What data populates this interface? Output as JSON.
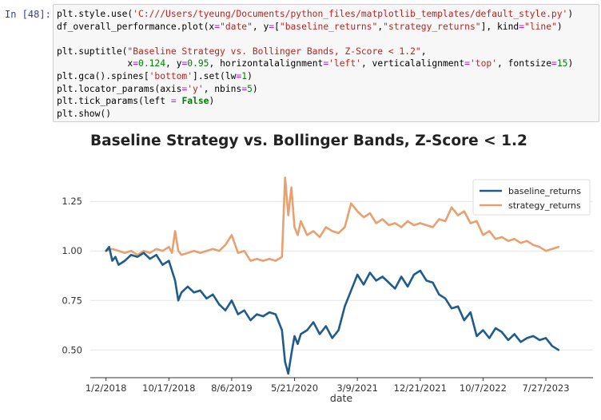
{
  "cell": {
    "prompt": "In [48]:",
    "code_lines": [
      [
        {
          "t": "plt.style.use(",
          "c": "fn"
        },
        {
          "t": "'C:///Users/tyeung/Documents/python_files/matplotlib_templates/default_style.py'",
          "c": "str"
        },
        {
          "t": ")",
          "c": "fn"
        }
      ],
      [
        {
          "t": "df_overall_performance.plot(x",
          "c": "fn"
        },
        {
          "t": "=",
          "c": "op"
        },
        {
          "t": "\"date\"",
          "c": "str"
        },
        {
          "t": ", y",
          "c": "fn"
        },
        {
          "t": "=",
          "c": "op"
        },
        {
          "t": "[",
          "c": "fn"
        },
        {
          "t": "\"baseline_returns\"",
          "c": "str"
        },
        {
          "t": ",",
          "c": "fn"
        },
        {
          "t": "\"strategy_returns\"",
          "c": "str"
        },
        {
          "t": "], kind",
          "c": "fn"
        },
        {
          "t": "=",
          "c": "op"
        },
        {
          "t": "\"line\"",
          "c": "str"
        },
        {
          "t": ")",
          "c": "fn"
        }
      ],
      [],
      [
        {
          "t": "plt.suptitle(",
          "c": "fn"
        },
        {
          "t": "\"Baseline Strategy vs. Bollinger Bands, Z-Score < 1.2\"",
          "c": "str"
        },
        {
          "t": ",",
          "c": "fn"
        }
      ],
      [
        {
          "t": "             x",
          "c": "fn"
        },
        {
          "t": "=",
          "c": "op"
        },
        {
          "t": "0.124",
          "c": "num"
        },
        {
          "t": ", y",
          "c": "fn"
        },
        {
          "t": "=",
          "c": "op"
        },
        {
          "t": "0.95",
          "c": "num"
        },
        {
          "t": ", horizontalalignment",
          "c": "fn"
        },
        {
          "t": "=",
          "c": "op"
        },
        {
          "t": "'left'",
          "c": "str"
        },
        {
          "t": ", verticalalignment",
          "c": "fn"
        },
        {
          "t": "=",
          "c": "op"
        },
        {
          "t": "'top'",
          "c": "str"
        },
        {
          "t": ", fontsize",
          "c": "fn"
        },
        {
          "t": "=",
          "c": "op"
        },
        {
          "t": "15",
          "c": "num"
        },
        {
          "t": ")",
          "c": "fn"
        }
      ],
      [
        {
          "t": "plt.gca().spines[",
          "c": "fn"
        },
        {
          "t": "'bottom'",
          "c": "str"
        },
        {
          "t": "].set(lw",
          "c": "fn"
        },
        {
          "t": "=",
          "c": "op"
        },
        {
          "t": "1",
          "c": "num"
        },
        {
          "t": ")",
          "c": "fn"
        }
      ],
      [
        {
          "t": "plt.locator_params(axis",
          "c": "fn"
        },
        {
          "t": "=",
          "c": "op"
        },
        {
          "t": "'y'",
          "c": "str"
        },
        {
          "t": ", nbins",
          "c": "fn"
        },
        {
          "t": "=",
          "c": "op"
        },
        {
          "t": "5",
          "c": "num"
        },
        {
          "t": ")",
          "c": "fn"
        }
      ],
      [
        {
          "t": "plt.tick_params(left ",
          "c": "fn"
        },
        {
          "t": "=",
          "c": "op"
        },
        {
          "t": " ",
          "c": "fn"
        },
        {
          "t": "False",
          "c": "kw"
        },
        {
          "t": ")",
          "c": "fn"
        }
      ],
      [
        {
          "t": "plt.show()",
          "c": "fn"
        }
      ]
    ]
  },
  "chart_data": {
    "type": "line",
    "title": "Baseline Strategy vs. Bollinger Bands, Z-Score < 1.2",
    "xlabel": "date",
    "ylabel": "",
    "x_tick_labels": [
      "1/2/2018",
      "10/17/2018",
      "8/6/2019",
      "5/21/2020",
      "3/9/2021",
      "12/21/2021",
      "10/7/2022",
      "7/27/2023"
    ],
    "y_ticks": [
      0.5,
      0.75,
      1.0,
      1.25
    ],
    "y_tick_labels": [
      "0.50",
      "0.75",
      "1.00",
      "1.25"
    ],
    "ylim": [
      0.36,
      1.4
    ],
    "xlim": [
      -0.25,
      7.75
    ],
    "grid": "horizontal",
    "legend": "top-right",
    "series": [
      {
        "name": "baseline_returns",
        "color": "#1f5b8c",
        "x": [
          0,
          0.05,
          0.1,
          0.15,
          0.2,
          0.3,
          0.4,
          0.5,
          0.6,
          0.7,
          0.8,
          0.9,
          1.0,
          1.1,
          1.15,
          1.2,
          1.3,
          1.4,
          1.5,
          1.6,
          1.7,
          1.8,
          1.9,
          2.0,
          2.1,
          2.2,
          2.3,
          2.4,
          2.5,
          2.6,
          2.7,
          2.8,
          2.85,
          2.9,
          2.95,
          3.0,
          3.05,
          3.1,
          3.2,
          3.3,
          3.4,
          3.5,
          3.6,
          3.7,
          3.8,
          3.9,
          4.0,
          4.1,
          4.2,
          4.3,
          4.4,
          4.5,
          4.6,
          4.7,
          4.8,
          4.9,
          5.0,
          5.1,
          5.2,
          5.3,
          5.4,
          5.5,
          5.6,
          5.7,
          5.8,
          5.9,
          6.0,
          6.1,
          6.2,
          6.3,
          6.4,
          6.5,
          6.6,
          6.7,
          6.8,
          6.9,
          7.0,
          7.1,
          7.2
        ],
        "values": [
          1.0,
          1.02,
          0.95,
          0.97,
          0.93,
          0.95,
          0.98,
          0.97,
          0.99,
          0.96,
          0.98,
          0.93,
          0.95,
          0.85,
          0.75,
          0.79,
          0.82,
          0.79,
          0.8,
          0.76,
          0.78,
          0.73,
          0.7,
          0.75,
          0.68,
          0.7,
          0.65,
          0.68,
          0.67,
          0.69,
          0.68,
          0.6,
          0.44,
          0.38,
          0.48,
          0.57,
          0.53,
          0.58,
          0.6,
          0.64,
          0.58,
          0.62,
          0.56,
          0.6,
          0.72,
          0.8,
          0.88,
          0.83,
          0.89,
          0.85,
          0.87,
          0.84,
          0.81,
          0.87,
          0.82,
          0.88,
          0.9,
          0.85,
          0.84,
          0.78,
          0.76,
          0.71,
          0.72,
          0.65,
          0.69,
          0.57,
          0.6,
          0.56,
          0.61,
          0.59,
          0.55,
          0.58,
          0.54,
          0.56,
          0.57,
          0.55,
          0.56,
          0.52,
          0.5
        ]
      },
      {
        "name": "strategy_returns",
        "color": "#e8a070",
        "x": [
          0,
          0.1,
          0.2,
          0.3,
          0.4,
          0.5,
          0.6,
          0.7,
          0.8,
          0.9,
          1.0,
          1.05,
          1.1,
          1.15,
          1.2,
          1.3,
          1.4,
          1.5,
          1.6,
          1.7,
          1.8,
          1.9,
          2.0,
          2.1,
          2.2,
          2.3,
          2.4,
          2.5,
          2.6,
          2.7,
          2.8,
          2.85,
          2.9,
          2.95,
          3.0,
          3.05,
          3.1,
          3.2,
          3.3,
          3.4,
          3.5,
          3.6,
          3.7,
          3.8,
          3.9,
          4.0,
          4.1,
          4.2,
          4.3,
          4.4,
          4.5,
          4.6,
          4.7,
          4.8,
          4.9,
          5.0,
          5.1,
          5.2,
          5.3,
          5.4,
          5.5,
          5.6,
          5.7,
          5.8,
          5.9,
          6.0,
          6.1,
          6.2,
          6.3,
          6.4,
          6.5,
          6.6,
          6.7,
          6.8,
          6.9,
          7.0,
          7.1,
          7.2
        ],
        "values": [
          1.0,
          1.01,
          1.0,
          0.99,
          1.0,
          0.98,
          1.0,
          0.99,
          1.01,
          1.0,
          1.02,
          0.99,
          1.1,
          1.0,
          0.98,
          0.99,
          1.0,
          0.99,
          1.0,
          1.01,
          1.0,
          1.03,
          1.08,
          0.99,
          1.0,
          0.95,
          0.96,
          0.95,
          0.96,
          0.95,
          0.97,
          1.37,
          1.18,
          1.32,
          1.12,
          1.08,
          1.15,
          1.08,
          1.1,
          1.07,
          1.12,
          1.1,
          1.09,
          1.12,
          1.24,
          1.2,
          1.17,
          1.19,
          1.14,
          1.16,
          1.13,
          1.14,
          1.12,
          1.15,
          1.13,
          1.14,
          1.13,
          1.12,
          1.16,
          1.15,
          1.22,
          1.18,
          1.2,
          1.14,
          1.15,
          1.08,
          1.1,
          1.06,
          1.07,
          1.05,
          1.06,
          1.04,
          1.05,
          1.03,
          1.02,
          1.0,
          1.01,
          1.02
        ]
      }
    ]
  }
}
